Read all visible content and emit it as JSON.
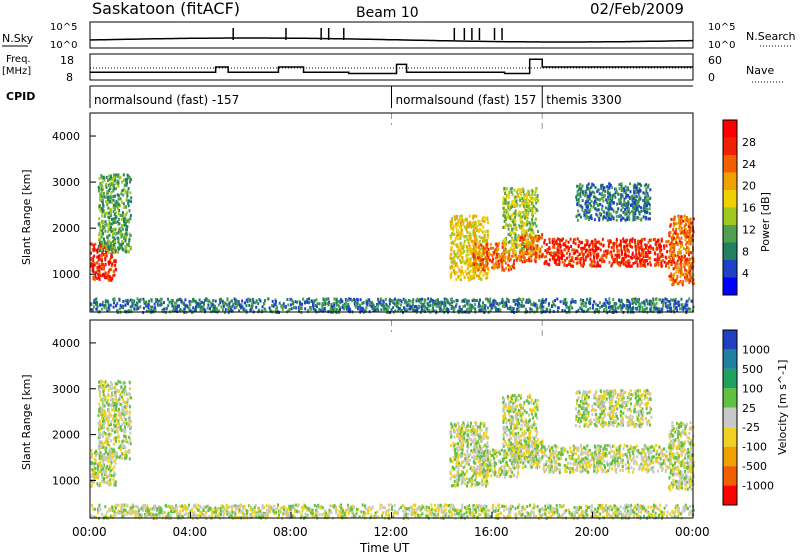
{
  "header": {
    "title": "Saskatoon (fitACF)",
    "beam": "Beam 10",
    "date": "02/Feb/2009"
  },
  "noise_panel": {
    "left_label": "N.Sky",
    "right_label": "N.Search",
    "ytick_top": "10^5",
    "ytick_bottom": "10^0",
    "rtick_top": "10^5",
    "rtick_bottom": "10^0"
  },
  "freq_panel": {
    "left_label_1": "Freq.",
    "left_label_2": "[MHz]",
    "ytick_top": "18",
    "ytick_bottom": "8",
    "rtick_top": "60",
    "rtick_bottom": "0",
    "right_label": "Nave"
  },
  "cpid_panel": {
    "label": "CPID",
    "segments": [
      {
        "start": 0.0,
        "text": "normalsound (fast) -157"
      },
      {
        "start": 12.0,
        "text": "normalsound (fast) 157"
      },
      {
        "start": 18.0,
        "text": "themis 3300"
      }
    ]
  },
  "power_panel": {
    "ylabel": "Slant Range [km]",
    "yticks": [
      "1000",
      "2000",
      "3000",
      "4000"
    ],
    "colorbar_label": "Power [dB]",
    "colorbar_ticks": [
      "4",
      "8",
      "12",
      "16",
      "20",
      "24",
      "28"
    ],
    "colors": [
      "#0000ff",
      "#2040c8",
      "#208060",
      "#50a050",
      "#a0c820",
      "#f0d000",
      "#f0a000",
      "#f06000",
      "#f02000",
      "#ff0000"
    ]
  },
  "velocity_panel": {
    "ylabel": "Slant Range [km]",
    "yticks": [
      "1000",
      "2000",
      "3000",
      "4000"
    ],
    "colorbar_label": "Velocity [m s^-1]",
    "colorbar_ticks": [
      "1000",
      "500",
      "100",
      "25",
      "-25",
      "-100",
      "-500",
      "-1000"
    ],
    "colors": [
      "#2040c0",
      "#2080a0",
      "#20a060",
      "#60c040",
      "#c8c8c8",
      "#f0d020",
      "#f0a000",
      "#f06000",
      "#ff0000"
    ]
  },
  "x_axis": {
    "label": "Time UT",
    "ticks": [
      "00:00",
      "04:00",
      "08:00",
      "12:00",
      "16:00",
      "20:00",
      "00:00"
    ]
  },
  "chart_data": {
    "type": "heatmap",
    "x_range_hours": [
      0,
      24
    ],
    "y_range_km": [
      180,
      4500
    ],
    "power_db_range": [
      0,
      30
    ],
    "velocity_range_ms": [
      -1000,
      1000
    ],
    "regions": [
      {
        "t0": 0.0,
        "t1": 1.0,
        "r0": 900,
        "r1": 1700,
        "power": 28,
        "velocity": 60
      },
      {
        "t0": 0.3,
        "t1": 1.6,
        "r0": 1500,
        "r1": 3200,
        "power": 10,
        "velocity": 0
      },
      {
        "t0": 0.0,
        "t1": 24.0,
        "r0": 200,
        "r1": 500,
        "power": 6,
        "velocity": -60
      },
      {
        "t0": 14.3,
        "t1": 15.8,
        "r0": 900,
        "r1": 2300,
        "power": 16,
        "velocity": 0
      },
      {
        "t0": 15.2,
        "t1": 17.0,
        "r0": 1100,
        "r1": 1700,
        "power": 22,
        "velocity": 0
      },
      {
        "t0": 16.4,
        "t1": 17.8,
        "r0": 1500,
        "r1": 2900,
        "power": 14,
        "velocity": 0
      },
      {
        "t0": 17.0,
        "t1": 18.0,
        "r0": 1300,
        "r1": 1900,
        "power": 24,
        "velocity": 0
      },
      {
        "t0": 18.0,
        "t1": 23.2,
        "r0": 1200,
        "r1": 1800,
        "power": 26,
        "velocity": 0
      },
      {
        "t0": 19.3,
        "t1": 22.3,
        "r0": 2200,
        "r1": 3000,
        "power": 8,
        "velocity": 0
      },
      {
        "t0": 23.0,
        "t1": 24.0,
        "r0": 800,
        "r1": 2300,
        "power": 24,
        "velocity": -60
      }
    ],
    "noise_spikes_hours": [
      5.7,
      7.8,
      9.2,
      9.5,
      10.1,
      14.5,
      14.9,
      15.2,
      15.5,
      16.1,
      16.4
    ],
    "freq_steps": [
      {
        "t0": 0,
        "t1": 5.0,
        "f": 11
      },
      {
        "t0": 5.0,
        "t1": 5.5,
        "f": 13
      },
      {
        "t0": 5.5,
        "t1": 7.5,
        "f": 11
      },
      {
        "t0": 7.5,
        "t1": 8.5,
        "f": 13
      },
      {
        "t0": 8.5,
        "t1": 10.3,
        "f": 11
      },
      {
        "t0": 10.3,
        "t1": 12.2,
        "f": 10.5
      },
      {
        "t0": 12.2,
        "t1": 12.6,
        "f": 14
      },
      {
        "t0": 12.6,
        "t1": 16.5,
        "f": 11
      },
      {
        "t0": 16.5,
        "t1": 17.5,
        "f": 10.5
      },
      {
        "t0": 17.5,
        "t1": 18.0,
        "f": 16
      },
      {
        "t0": 18.0,
        "t1": 24.0,
        "f": 13
      }
    ]
  }
}
